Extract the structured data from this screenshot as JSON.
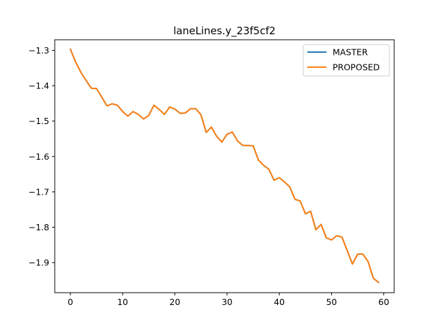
{
  "chart_data": {
    "type": "line",
    "title": "laneLines.y_23f5cf2",
    "xlabel": "",
    "ylabel": "",
    "xlim": [
      -3,
      62
    ],
    "ylim": [
      -1.985,
      -1.27
    ],
    "xticks": [
      0,
      10,
      20,
      30,
      40,
      50,
      60
    ],
    "yticks": [
      -1.3,
      -1.4,
      -1.5,
      -1.6,
      -1.7,
      -1.8,
      -1.9
    ],
    "xtick_labels": [
      "0",
      "10",
      "20",
      "30",
      "40",
      "50",
      "60"
    ],
    "ytick_labels": [
      "−1.3",
      "−1.4",
      "−1.5",
      "−1.6",
      "−1.7",
      "−1.8",
      "−1.9"
    ],
    "legend_position": "top-right",
    "grid": false,
    "x": [
      0,
      1,
      2,
      3,
      4,
      5,
      6,
      7,
      8,
      9,
      10,
      11,
      12,
      13,
      14,
      15,
      16,
      17,
      18,
      19,
      20,
      21,
      22,
      23,
      24,
      25,
      26,
      27,
      28,
      29,
      30,
      31,
      32,
      33,
      34,
      35,
      36,
      37,
      38,
      39,
      40,
      41,
      42,
      43,
      44,
      45,
      46,
      47,
      48,
      49,
      50,
      51,
      52,
      53,
      54,
      55,
      56,
      57,
      58,
      59
    ],
    "series": [
      {
        "name": "MASTER",
        "color": "#1f77b4",
        "values": [
          -1.297,
          -1.333,
          -1.362,
          -1.385,
          -1.407,
          -1.408,
          -1.432,
          -1.457,
          -1.451,
          -1.455,
          -1.473,
          -1.486,
          -1.473,
          -1.481,
          -1.494,
          -1.484,
          -1.455,
          -1.467,
          -1.481,
          -1.46,
          -1.466,
          -1.478,
          -1.477,
          -1.465,
          -1.465,
          -1.482,
          -1.532,
          -1.517,
          -1.543,
          -1.559,
          -1.537,
          -1.531,
          -1.556,
          -1.569,
          -1.569,
          -1.57,
          -1.61,
          -1.625,
          -1.636,
          -1.667,
          -1.66,
          -1.672,
          -1.686,
          -1.721,
          -1.726,
          -1.762,
          -1.755,
          -1.807,
          -1.792,
          -1.83,
          -1.836,
          -1.824,
          -1.828,
          -1.866,
          -1.904,
          -1.876,
          -1.876,
          -1.897,
          -1.944,
          -1.956
        ]
      },
      {
        "name": "PROPOSED",
        "color": "#ff7f0e",
        "values": [
          -1.297,
          -1.333,
          -1.362,
          -1.385,
          -1.407,
          -1.408,
          -1.432,
          -1.457,
          -1.451,
          -1.455,
          -1.473,
          -1.486,
          -1.473,
          -1.481,
          -1.494,
          -1.484,
          -1.455,
          -1.467,
          -1.481,
          -1.46,
          -1.466,
          -1.478,
          -1.477,
          -1.465,
          -1.465,
          -1.482,
          -1.532,
          -1.517,
          -1.543,
          -1.559,
          -1.537,
          -1.531,
          -1.556,
          -1.569,
          -1.569,
          -1.57,
          -1.61,
          -1.625,
          -1.636,
          -1.667,
          -1.66,
          -1.672,
          -1.686,
          -1.721,
          -1.726,
          -1.762,
          -1.755,
          -1.807,
          -1.792,
          -1.83,
          -1.836,
          -1.824,
          -1.828,
          -1.866,
          -1.904,
          -1.876,
          -1.876,
          -1.897,
          -1.944,
          -1.956
        ]
      }
    ]
  }
}
